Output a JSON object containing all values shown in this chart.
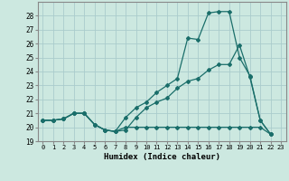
{
  "xlabel": "Humidex (Indice chaleur)",
  "bg_color": "#cce8e0",
  "grid_color": "#aacccc",
  "line_color": "#1a6e6a",
  "xlim": [
    -0.5,
    23.5
  ],
  "ylim": [
    19,
    29
  ],
  "yticks": [
    19,
    20,
    21,
    22,
    23,
    24,
    25,
    26,
    27,
    28
  ],
  "xticks": [
    0,
    1,
    2,
    3,
    4,
    5,
    6,
    7,
    8,
    9,
    10,
    11,
    12,
    13,
    14,
    15,
    16,
    17,
    18,
    19,
    20,
    21,
    22,
    23
  ],
  "series": [
    [
      20.5,
      20.5,
      20.6,
      21.0,
      21.0,
      20.2,
      19.8,
      19.7,
      20.0,
      20.0,
      20.0,
      20.0,
      20.0,
      20.0,
      20.0,
      20.0,
      20.0,
      20.0,
      20.0,
      20.0,
      20.0,
      20.0,
      19.5
    ],
    [
      20.5,
      20.5,
      20.6,
      21.0,
      21.0,
      20.2,
      19.8,
      19.7,
      19.8,
      20.7,
      21.4,
      21.8,
      22.1,
      22.8,
      23.3,
      23.5,
      24.1,
      24.5,
      24.5,
      25.9,
      23.6,
      20.5,
      19.5
    ],
    [
      20.5,
      20.5,
      20.6,
      21.0,
      21.0,
      20.2,
      19.8,
      19.7,
      20.7,
      21.4,
      21.8,
      22.5,
      23.0,
      23.5,
      26.4,
      26.3,
      28.2,
      28.3,
      28.3,
      25.0,
      23.7,
      20.5,
      19.5
    ]
  ]
}
